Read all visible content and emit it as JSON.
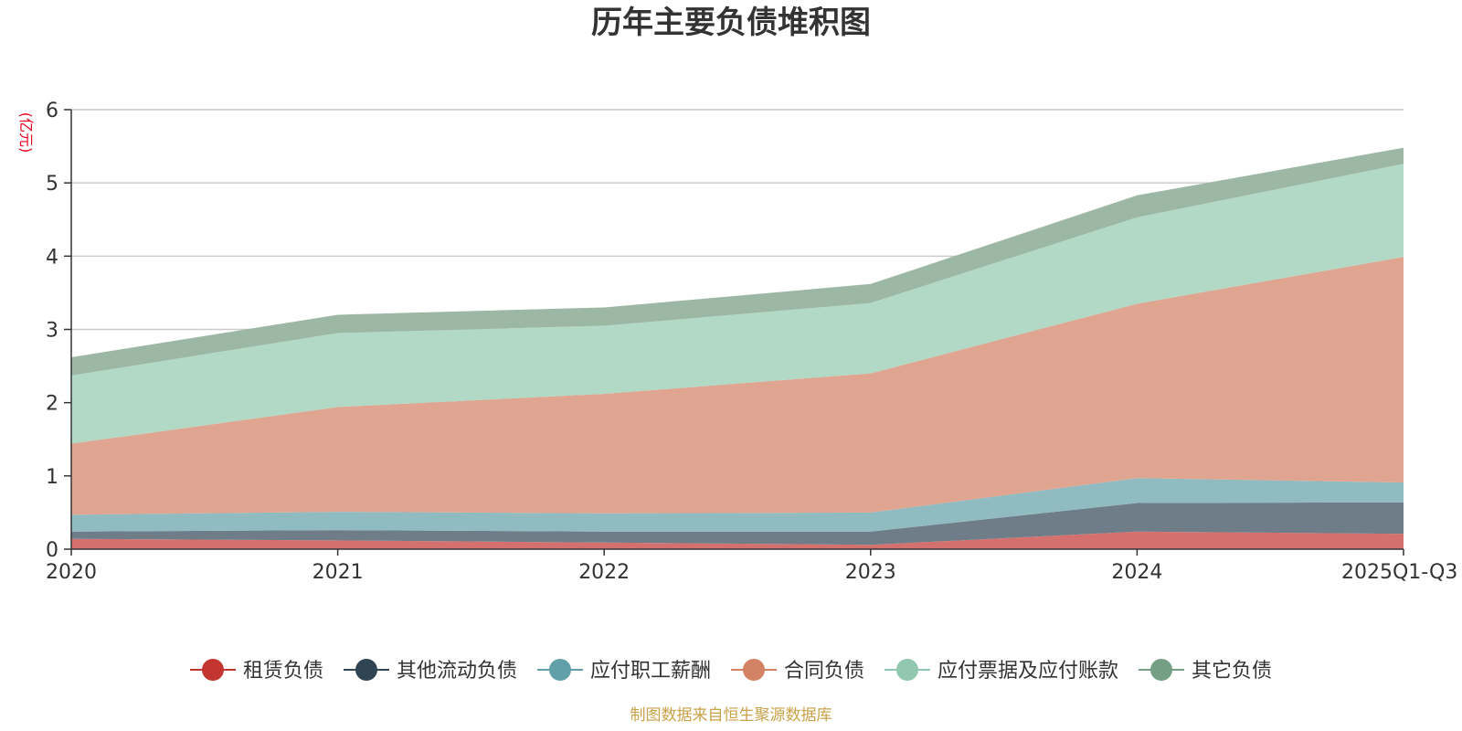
{
  "chart_data": {
    "type": "area",
    "stacked": true,
    "title": "历年主要负债堆积图",
    "unit": "(亿元)",
    "source": "制图数据来自恒生聚源数据库",
    "categories": [
      "2020",
      "2021",
      "2022",
      "2023",
      "2024",
      "2025Q1-Q3"
    ],
    "ylim": [
      0,
      6
    ],
    "yticks": [
      "0",
      "1",
      "2",
      "3",
      "4",
      "5",
      "6"
    ],
    "grid": true,
    "legend_position": "bottom",
    "series": [
      {
        "name": "租赁负债",
        "color": "#c23531",
        "fill": "#d4706d",
        "values": [
          0.14,
          0.12,
          0.09,
          0.06,
          0.24,
          0.21
        ]
      },
      {
        "name": "其他流动负债",
        "color": "#2f4554",
        "fill": "#6e7d88",
        "values": [
          0.1,
          0.14,
          0.15,
          0.18,
          0.39,
          0.43
        ]
      },
      {
        "name": "应付职工薪酬",
        "color": "#61a0a8",
        "fill": "#90bbc0",
        "values": [
          0.23,
          0.25,
          0.25,
          0.26,
          0.34,
          0.27
        ]
      },
      {
        "name": "合同负债",
        "color": "#d48265",
        "fill": "#dfa590",
        "values": [
          0.97,
          1.43,
          1.63,
          1.9,
          2.38,
          3.08
        ]
      },
      {
        "name": "应付票据及应付账款",
        "color": "#91c7ae",
        "fill": "#b2d8c6",
        "values": [
          0.93,
          1.01,
          0.93,
          0.96,
          1.18,
          1.27
        ]
      },
      {
        "name": "其它负债",
        "color": "#749f83",
        "fill": "#9cb8a5",
        "values": [
          0.25,
          0.25,
          0.25,
          0.26,
          0.3,
          0.22
        ]
      }
    ]
  }
}
